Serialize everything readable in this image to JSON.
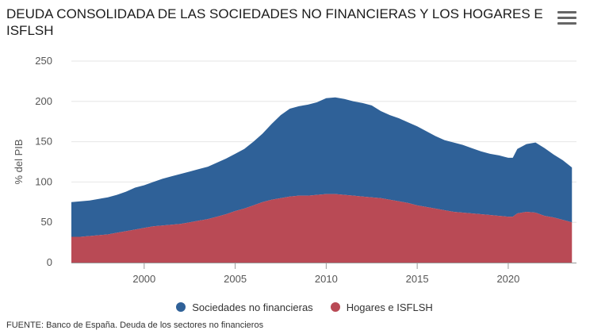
{
  "header": {
    "title": "DEUDA CONSOLIDADA DE LAS SOCIEDADES NO FINANCIERAS Y LOS HOGARES E ISFLSH",
    "menu_icon": "hamburger-menu-icon"
  },
  "footer": {
    "source": "FUENTE: Banco de España. Deuda de los sectores no financieros"
  },
  "chart_data": {
    "type": "area",
    "stacked": true,
    "ylabel": "% del PIB",
    "xlabel": "",
    "ylim": [
      0,
      250
    ],
    "yticks": [
      0,
      50,
      100,
      150,
      200,
      250
    ],
    "xlim": [
      1996,
      2023.75
    ],
    "xticks": [
      2000,
      2005,
      2010,
      2015,
      2020
    ],
    "grid": true,
    "legend_position": "bottom",
    "x": [
      1996.0,
      1996.5,
      1997.0,
      1997.5,
      1998.0,
      1998.5,
      1999.0,
      1999.5,
      2000.0,
      2000.5,
      2001.0,
      2001.5,
      2002.0,
      2002.5,
      2003.0,
      2003.5,
      2004.0,
      2004.5,
      2005.0,
      2005.5,
      2006.0,
      2006.5,
      2007.0,
      2007.5,
      2008.0,
      2008.5,
      2009.0,
      2009.5,
      2010.0,
      2010.5,
      2011.0,
      2011.5,
      2012.0,
      2012.5,
      2013.0,
      2013.5,
      2014.0,
      2014.5,
      2015.0,
      2015.5,
      2016.0,
      2016.5,
      2017.0,
      2017.5,
      2018.0,
      2018.5,
      2019.0,
      2019.5,
      2020.0,
      2020.25,
      2020.5,
      2021.0,
      2021.5,
      2022.0,
      2022.5,
      2023.0,
      2023.5
    ],
    "series": [
      {
        "name": "Sociedades no financieras",
        "color": "#2f6198",
        "total": [
          75,
          76,
          77,
          79,
          81,
          84,
          88,
          93,
          96,
          100,
          104,
          107,
          110,
          113,
          116,
          119,
          124,
          129,
          135,
          141,
          150,
          160,
          172,
          183,
          191,
          194,
          196,
          199,
          204,
          205,
          203,
          200,
          198,
          195,
          188,
          183,
          179,
          174,
          169,
          163,
          157,
          152,
          149,
          146,
          142,
          138,
          135,
          133,
          130,
          130,
          141,
          147,
          149,
          142,
          134,
          127,
          118
        ]
      },
      {
        "name": "Hogares e ISFLSH",
        "color": "#b94a55",
        "values": [
          32,
          32,
          33,
          34,
          35,
          37,
          39,
          41,
          43,
          45,
          46,
          47,
          48,
          50,
          52,
          54,
          57,
          60,
          64,
          67,
          71,
          75,
          78,
          80,
          82,
          83,
          83,
          84,
          85,
          85,
          84,
          83,
          82,
          81,
          80,
          78,
          76,
          74,
          71,
          69,
          67,
          65,
          63,
          62,
          61,
          60,
          59,
          58,
          57,
          57,
          61,
          63,
          62,
          58,
          56,
          53,
          50
        ]
      }
    ]
  }
}
